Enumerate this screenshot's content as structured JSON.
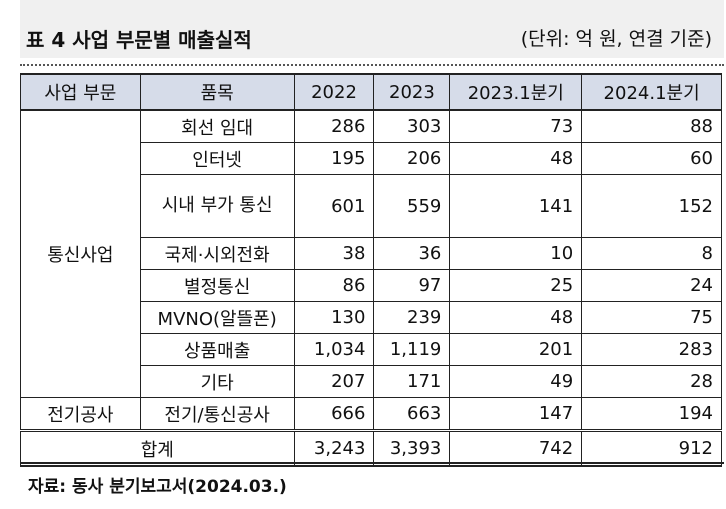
{
  "title": "표 4 사업 부문별 매출실적",
  "unit": "(단위: 억 원, 연결 기준)",
  "table": {
    "headers": [
      "사업 부문",
      "품목",
      "2022",
      "2023",
      "2023.1분기",
      "2024.1분기"
    ],
    "groups": [
      {
        "category": "통신사업",
        "rows": [
          {
            "item": "회선 임대",
            "v2022": "286",
            "v2023": "303",
            "q2023": "73",
            "q2024": "88"
          },
          {
            "item": "인터넷",
            "v2022": "195",
            "v2023": "206",
            "q2023": "48",
            "q2024": "60"
          },
          {
            "item": "시내 부가 통신",
            "v2022": "601",
            "v2023": "559",
            "q2023": "141",
            "q2024": "152"
          },
          {
            "item": "국제·시외전화",
            "v2022": "38",
            "v2023": "36",
            "q2023": "10",
            "q2024": "8"
          },
          {
            "item": "별정통신",
            "v2022": "86",
            "v2023": "97",
            "q2023": "25",
            "q2024": "24"
          },
          {
            "item": "MVNO(알뜰폰)",
            "v2022": "130",
            "v2023": "239",
            "q2023": "48",
            "q2024": "75"
          },
          {
            "item": "상품매출",
            "v2022": "1,034",
            "v2023": "1,119",
            "q2023": "201",
            "q2024": "283"
          },
          {
            "item": "기타",
            "v2022": "207",
            "v2023": "171",
            "q2023": "49",
            "q2024": "28"
          }
        ]
      },
      {
        "category": "전기공사",
        "rows": [
          {
            "item": "전기/통신공사",
            "v2022": "666",
            "v2023": "663",
            "q2023": "147",
            "q2024": "194"
          }
        ]
      }
    ],
    "total": {
      "label": "합계",
      "v2022": "3,243",
      "v2023": "3,393",
      "q2023": "742",
      "q2024": "912"
    }
  },
  "source": "자료: 동사 분기보고서(2024.03.)"
}
